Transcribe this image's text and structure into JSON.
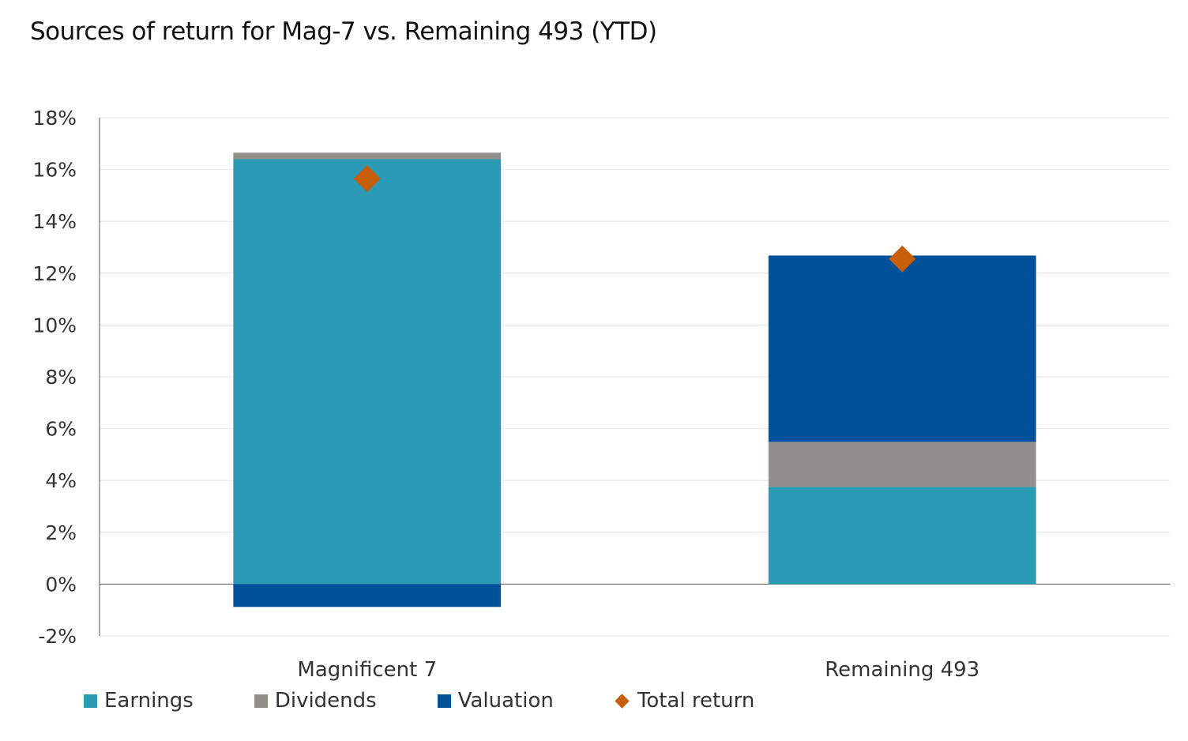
{
  "chart_data": {
    "type": "bar",
    "stacked": true,
    "title": "Sources of return for Mag-7 vs. Remaining 493 (YTD)",
    "categories": [
      "Magnificent 7",
      "Remaining 493"
    ],
    "ylim": [
      -2,
      18
    ],
    "yticks": [
      -2,
      0,
      2,
      4,
      6,
      8,
      10,
      12,
      14,
      16,
      18
    ],
    "ytick_format": "%",
    "grid": true,
    "legend_placement": "bottom",
    "series": [
      {
        "name": "Earnings",
        "type": "bar",
        "color": "#2B9BB5",
        "values": [
          16.4,
          3.75
        ]
      },
      {
        "name": "Dividends",
        "type": "bar",
        "color": "#918F8A",
        "values": [
          0.25,
          1.74
        ]
      },
      {
        "name": "Valuation",
        "type": "bar",
        "color": "#00509A",
        "values": [
          -0.88,
          7.19
        ]
      },
      {
        "name": "Total return",
        "type": "marker",
        "marker": "diamond",
        "color": "#C65E0A",
        "values": [
          15.65,
          12.55
        ]
      }
    ]
  }
}
